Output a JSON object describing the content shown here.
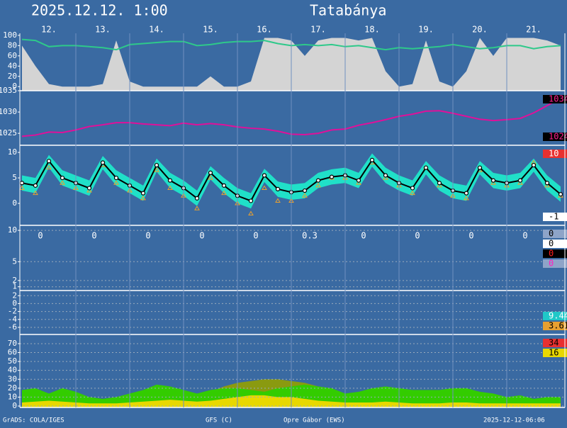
{
  "header": {
    "time": "2025.12.12. 1:00",
    "place": "Tatabánya"
  },
  "footer": [
    "GrADS: COLA/IGES",
    "GFS (C)",
    "Opre Gábor (EWS)",
    "2025-12-12-06:06"
  ],
  "chart_data": [
    {
      "type": "area",
      "categories": [
        null,
        null,
        "12.",
        null,
        null,
        null,
        "13.",
        null,
        null,
        null,
        "14.",
        null,
        null,
        null,
        "15.",
        null,
        null,
        null,
        "16.",
        null,
        null,
        null,
        "17.",
        null,
        null,
        null,
        "18.",
        null,
        null,
        null,
        "19.",
        null,
        null,
        null,
        "20.",
        null,
        null,
        null,
        "21.",
        null,
        null
      ],
      "ylim": [
        -8,
        104
      ],
      "yticks": [
        0,
        20,
        40,
        60,
        80,
        100
      ],
      "grid": false,
      "series": [
        {
          "kind": "area",
          "color": "#d4d4d4",
          "values": [
            80,
            40,
            5,
            0,
            0,
            0,
            5,
            90,
            10,
            0,
            0,
            0,
            0,
            0,
            20,
            0,
            0,
            10,
            95,
            95,
            90,
            60,
            90,
            95,
            95,
            90,
            95,
            30,
            0,
            5,
            90,
            10,
            0,
            30,
            95,
            60,
            95,
            95,
            95,
            90,
            80
          ]
        },
        {
          "kind": "line",
          "color": "#2ec98a",
          "values": [
            92,
            90,
            78,
            80,
            80,
            78,
            76,
            72,
            82,
            84,
            86,
            88,
            88,
            80,
            82,
            86,
            88,
            88,
            90,
            84,
            80,
            82,
            80,
            82,
            78,
            80,
            76,
            72,
            76,
            74,
            76,
            78,
            82,
            78,
            74,
            76,
            80,
            80,
            74,
            78,
            80
          ]
        }
      ]
    },
    {
      "type": "line",
      "ylim": [
        1022.2,
        1035
      ],
      "yticks": [
        1025,
        1030,
        1035
      ],
      "grid": false,
      "series": [
        {
          "kind": "line",
          "color": "#e0109a",
          "values": [
            1024.3,
            1024.6,
            1025.3,
            1025.2,
            1025.8,
            1026.6,
            1027.0,
            1027.5,
            1027.5,
            1027.2,
            1027.0,
            1026.8,
            1027.4,
            1027.0,
            1027.3,
            1027.0,
            1026.5,
            1026.2,
            1026.0,
            1025.5,
            1024.8,
            1024.7,
            1025.0,
            1025.8,
            1026.0,
            1026.9,
            1027.5,
            1028.2,
            1029.0,
            1029.5,
            1030.2,
            1030.3,
            1029.7,
            1029.0,
            1028.3,
            1028.0,
            1028.2,
            1028.5,
            1029.8,
            1031.5,
            1033.2
          ]
        }
      ],
      "side_labels": [
        1034,
        1024
      ],
      "side_labels_at": "split",
      "side_label_fills": [
        "#000000",
        "#000000"
      ],
      "side_label_text_colors": [
        "#ff2090",
        "#ff2090"
      ]
    },
    {
      "type": "line",
      "ylim": [
        -4.3,
        11.4
      ],
      "yticks": [
        0,
        5,
        10
      ],
      "grid": false,
      "series": [
        {
          "kind": "band",
          "color": "#20e0c8",
          "values": [
            5.5,
            5,
            9.5,
            6.5,
            5.5,
            4.5,
            9.3,
            6.5,
            5,
            3.5,
            8.8,
            6,
            4.5,
            2.5,
            7.3,
            5,
            3,
            2,
            6.8,
            4.3,
            3.7,
            4,
            6,
            6.7,
            7,
            6,
            9.8,
            7,
            5.5,
            4.5,
            8.3,
            5.5,
            4,
            3.5,
            8.3,
            6,
            5.5,
            6,
            8.8,
            5.5,
            3.3
          ],
          "low": [
            2.5,
            2,
            7,
            3.5,
            2.5,
            1.5,
            6.7,
            3.5,
            2,
            0.5,
            6.2,
            3,
            1.5,
            -0.5,
            4.7,
            2,
            0,
            -1,
            4.2,
            1.3,
            0.7,
            1,
            3,
            3.7,
            4,
            3,
            7.2,
            4,
            2.5,
            1.5,
            5.7,
            2.5,
            1,
            0.5,
            5.7,
            3,
            2.5,
            3,
            6.2,
            2.5,
            0.3
          ]
        },
        {
          "kind": "points",
          "marker": "triangle",
          "color": "#e8a030",
          "values": [
            3,
            2,
            7,
            4,
            3,
            2.5,
            7.5,
            4,
            2.5,
            1,
            6.5,
            3,
            1.5,
            -1,
            5,
            2,
            0,
            -2,
            3,
            0.5,
            0.5,
            1.5,
            3.5,
            5,
            5,
            4,
            8,
            5,
            3.5,
            2,
            7,
            3.5,
            1.5,
            1,
            6.5,
            4,
            3.5,
            4,
            8,
            3.5,
            1.5
          ]
        },
        {
          "kind": "line",
          "marker": "circle",
          "color": "#000000",
          "values": [
            4,
            3.5,
            8.3,
            5,
            4,
            3,
            8,
            5,
            3.5,
            2,
            7.5,
            4.5,
            3,
            1,
            6,
            3.5,
            1.5,
            0.5,
            5.5,
            2.8,
            2.2,
            2.5,
            4.5,
            5.2,
            5.5,
            4.5,
            8.5,
            5.5,
            4,
            3,
            7,
            4,
            2.5,
            2,
            7,
            4.5,
            4,
            4.5,
            7.5,
            4,
            1.8
          ]
        }
      ],
      "side_labels": [
        10,
        -1
      ],
      "side_labels_at": "split",
      "side_label_fills": [
        "#e83030",
        "#ffffff"
      ],
      "side_label_text_colors": [
        "#ffffff",
        "#000000"
      ]
    },
    {
      "type": "bar",
      "ylim": [
        0.4,
        10.8
      ],
      "yticks": [
        1,
        2,
        5,
        10
      ],
      "grid": true,
      "daily_totals": [
        0,
        0,
        0,
        0,
        0,
        0.3,
        0,
        0,
        0,
        0
      ],
      "side_labels": [
        0,
        0,
        0,
        0
      ],
      "side_labels_at": "top",
      "side_label_fills": [
        "#8ea4c8",
        "#ffffff",
        "#000000",
        "#8ea4c8"
      ],
      "side_label_text_colors": [
        "#000000",
        "#000000",
        "#ff2020",
        "#ff20c0"
      ]
    },
    {
      "type": "line",
      "ylim": [
        -7.8,
        3.3
      ],
      "yticks": [
        -6,
        -4,
        -2,
        0,
        2
      ],
      "grid": true,
      "side_labels": [
        9.44,
        3.61
      ],
      "side_labels_at": "bottom",
      "side_label_fills": [
        "#20c8c8",
        "#e8a030"
      ],
      "side_label_text_colors": [
        "#ffffff",
        "#000000"
      ]
    },
    {
      "type": "area",
      "ylim": [
        -1.6,
        80.3
      ],
      "yticks": [
        0,
        10,
        20,
        30,
        40,
        50,
        60,
        70
      ],
      "grid": true,
      "series": [
        {
          "kind": "area",
          "color": "#8a9a10",
          "values": [
            8,
            10,
            12,
            10,
            8,
            6,
            5,
            6,
            8,
            12,
            16,
            18,
            16,
            12,
            16,
            22,
            26,
            28,
            30,
            30,
            28,
            26,
            22,
            18,
            12,
            10,
            10,
            12,
            10,
            8,
            8,
            8,
            10,
            10,
            8,
            8,
            6,
            8,
            6,
            8,
            6
          ]
        },
        {
          "kind": "area",
          "color": "#33cc00",
          "values": [
            18,
            20,
            14,
            20,
            16,
            10,
            8,
            10,
            14,
            18,
            24,
            22,
            18,
            14,
            18,
            20,
            20,
            18,
            16,
            20,
            22,
            24,
            22,
            20,
            14,
            16,
            20,
            22,
            20,
            18,
            18,
            18,
            20,
            20,
            16,
            14,
            10,
            12,
            8,
            10,
            10
          ]
        },
        {
          "kind": "area",
          "color": "#e8d800",
          "values": [
            4,
            5,
            6,
            5,
            4,
            3,
            3,
            3,
            4,
            5,
            6,
            7,
            6,
            5,
            6,
            8,
            10,
            12,
            12,
            10,
            10,
            8,
            6,
            5,
            4,
            4,
            4,
            5,
            4,
            3,
            3,
            3,
            4,
            4,
            3,
            3,
            3,
            3,
            3,
            3,
            3
          ]
        }
      ],
      "side_labels": [
        34,
        16
      ],
      "side_labels_at": "top",
      "side_label_fills": [
        "#e83030",
        "#e8d800"
      ],
      "side_label_text_colors": [
        "#000000",
        "#000000"
      ]
    }
  ]
}
